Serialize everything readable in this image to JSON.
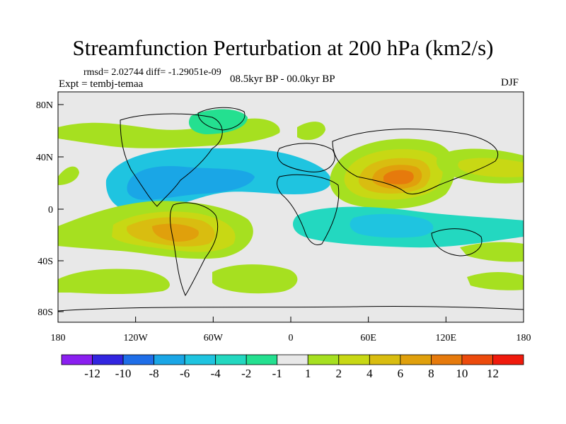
{
  "header": {
    "title": "Streamfunction Perturbation at 200 hPa (km2/s)",
    "stats": "rmsd= 2.02744 diff= -1.29051e-09",
    "experiment": "Expt = tembj-temaa",
    "period": "08.5kyr BP - 00.0kyr BP",
    "season": "DJF"
  },
  "map": {
    "lat_ticks": [
      "80N",
      "40N",
      "0",
      "40S",
      "80S"
    ],
    "lon_ticks": [
      "180",
      "120W",
      "60W",
      "0",
      "60E",
      "120E",
      "180"
    ],
    "anomalies": [
      {
        "name": "north-atlantic-positive-1",
        "level": 1
      },
      {
        "name": "north-atlantic-positive-2",
        "level": 2
      },
      {
        "name": "central-asia-positive-1",
        "level": 1
      },
      {
        "name": "central-asia-positive-2",
        "level": 2
      },
      {
        "name": "central-asia-positive-4",
        "level": 4
      },
      {
        "name": "central-asia-positive-6",
        "level": 6
      },
      {
        "name": "central-asia-positive-8",
        "level": 8
      },
      {
        "name": "south-pacific-positive-1",
        "level": 1
      },
      {
        "name": "south-pacific-positive-2",
        "level": 2
      },
      {
        "name": "south-pacific-positive-4",
        "level": 4
      },
      {
        "name": "south-pacific-positive-6",
        "level": 6
      },
      {
        "name": "north-american-negative-2",
        "level": -2
      },
      {
        "name": "north-american-negative-4",
        "level": -4
      },
      {
        "name": "indian-ocean-negative-2",
        "level": -2
      },
      {
        "name": "indian-ocean-negative-4",
        "level": -4
      },
      {
        "name": "southern-ocean-positive-1",
        "level": 1
      }
    ]
  },
  "colorbar": {
    "colors": [
      "#8a1ff0",
      "#3225e0",
      "#1f6ee8",
      "#1aa6e6",
      "#1fc4e0",
      "#23d8c0",
      "#24e090",
      "#e8e8e8",
      "#a6e020",
      "#c8d814",
      "#d9bd10",
      "#e0a00c",
      "#e67a0c",
      "#ec4a0c",
      "#f01a0c"
    ],
    "labels": [
      "-12",
      "-10",
      "-8",
      "-6",
      "-4",
      "-2",
      "-1",
      "1",
      "2",
      "4",
      "6",
      "8",
      "10",
      "12"
    ]
  }
}
